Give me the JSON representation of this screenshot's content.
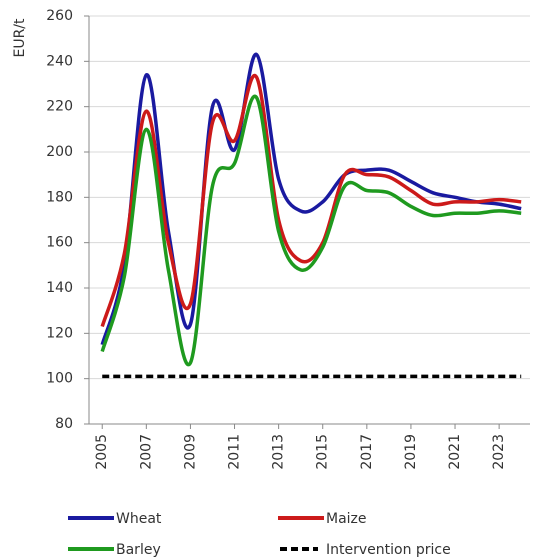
{
  "chart_data": {
    "type": "line",
    "y_label": "EUR/t",
    "x": [
      2005,
      2006,
      2007,
      2008,
      2009,
      2010,
      2011,
      2012,
      2013,
      2014,
      2015,
      2016,
      2017,
      2018,
      2019,
      2020,
      2021,
      2022,
      2023,
      2024
    ],
    "xlim": [
      2004.4,
      2024.4
    ],
    "xticks": [
      2005,
      2007,
      2009,
      2011,
      2013,
      2015,
      2017,
      2019,
      2021,
      2023
    ],
    "ylim": [
      80,
      260
    ],
    "yticks": [
      80,
      100,
      120,
      140,
      160,
      180,
      200,
      220,
      240,
      260
    ],
    "grid": true,
    "legend": "bottom",
    "series": [
      {
        "name": "Wheat",
        "color": "#1a1aa0",
        "values": [
          115,
          150,
          234,
          165,
          124,
          220,
          201,
          243,
          188,
          174,
          178,
          190,
          192,
          192,
          187,
          182,
          180,
          178,
          177,
          175
        ]
      },
      {
        "name": "Maize",
        "color": "#cc1a1a",
        "values": [
          123,
          155,
          218,
          160,
          133,
          213,
          205,
          233,
          170,
          152,
          160,
          190,
          190,
          189,
          183,
          177,
          178,
          178,
          179,
          178
        ]
      },
      {
        "name": "Barley",
        "color": "#1f9a1f",
        "values": [
          112,
          145,
          210,
          148,
          107,
          185,
          195,
          224,
          165,
          148,
          158,
          185,
          183,
          182,
          176,
          172,
          173,
          173,
          174,
          173
        ]
      },
      {
        "name": "Intervention price",
        "color": "#000000",
        "dashed": true,
        "values": [
          101,
          101,
          101,
          101,
          101,
          101,
          101,
          101,
          101,
          101,
          101,
          101,
          101,
          101,
          101,
          101,
          101,
          101,
          101,
          101
        ]
      }
    ]
  }
}
